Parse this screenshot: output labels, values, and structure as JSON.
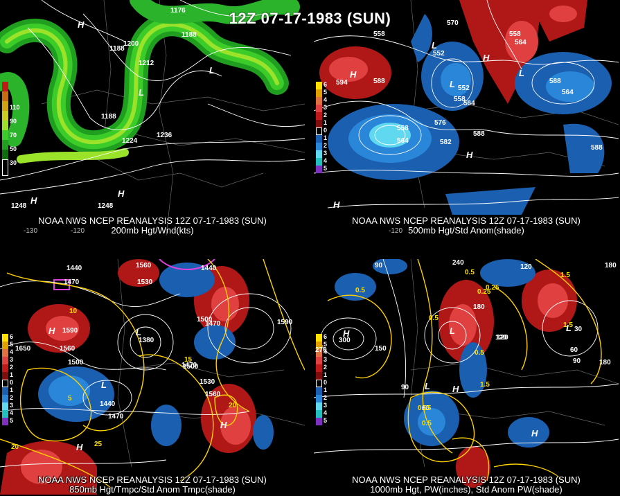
{
  "title": "12Z 07-17-1983 (SUN)",
  "panels": [
    {
      "caption_line1": "NOAA NWS NCEP REANALYSIS 12Z 07-17-1983 (SUN)",
      "caption_line2": "200mb Hgt/Wnd(kts)",
      "legend": [
        "110",
        "90",
        "70",
        "50",
        "30"
      ],
      "lon_labels": [
        "-130",
        "-120"
      ],
      "contour_labels": [
        "1176",
        "1188",
        "1188",
        "1200",
        "1212",
        "1188",
        "1224",
        "1236",
        "1248",
        "1248"
      ],
      "centers": [
        "H",
        "L",
        "L",
        "H",
        "H"
      ]
    },
    {
      "caption_line1": "NOAA NWS NCEP REANALYSIS 12Z 07-17-1983 (SUN)",
      "caption_line2": "500mb Hgt/Std Anom(shade)",
      "legend": [
        "6",
        "5",
        "4",
        "3",
        "2",
        "1",
        "0",
        "1",
        "2",
        "3",
        "4",
        "5"
      ],
      "lon_labels": [
        "-120"
      ],
      "contour_labels": [
        "558",
        "570",
        "558",
        "564",
        "552",
        "588",
        "552",
        "558",
        "564",
        "576",
        "588",
        "582",
        "588",
        "564",
        "558",
        "564",
        "594",
        "588"
      ],
      "centers": [
        "H",
        "L",
        "H",
        "L",
        "L",
        "H",
        "H"
      ]
    },
    {
      "caption_line1": "NOAA NWS NCEP REANALYSIS 12Z 07-17-1983 (SUN)",
      "caption_line2": "850mb Hgt/Tmpc/Std Anom Tmpc(shade)",
      "legend": [
        "6",
        "5",
        "4",
        "3",
        "2",
        "1",
        "0",
        "1",
        "2",
        "3",
        "4",
        "5"
      ],
      "contour_labels": [
        "1440",
        "1470",
        "1560",
        "1530",
        "1440",
        "1470",
        "1590",
        "1560",
        "1500",
        "1500",
        "1470",
        "1380",
        "1500",
        "1530",
        "1560",
        "1440",
        "1470",
        "1590",
        "1650"
      ],
      "temp_labels": [
        "10",
        "15",
        "5",
        "20",
        "25",
        "20"
      ],
      "centers": [
        "H",
        "L",
        "L",
        "H",
        "H"
      ]
    },
    {
      "caption_line1": "NOAA NWS NCEP REANALYSIS 12Z 07-17-1983 (SUN)",
      "caption_line2": "1000mb Hgt, PW(inches), Std Anom PW(shade)",
      "legend": [
        "6",
        "5",
        "4",
        "3",
        "2",
        "1",
        "0",
        "1",
        "2",
        "3",
        "4",
        "5"
      ],
      "contour_labels": [
        "90",
        "240",
        "120",
        "180",
        "300",
        "270",
        "150",
        "120",
        "90",
        "60",
        "30",
        "60",
        "90",
        "180",
        "120",
        "180"
      ],
      "pw_labels": [
        "0.5",
        "0.5",
        "0.25",
        "1.5",
        "0.5",
        "0.5",
        "0.25",
        "1.5",
        "0.25",
        "0.5",
        "1.5"
      ],
      "centers": [
        "H",
        "L",
        "L",
        "L",
        "H",
        "H"
      ]
    }
  ]
}
